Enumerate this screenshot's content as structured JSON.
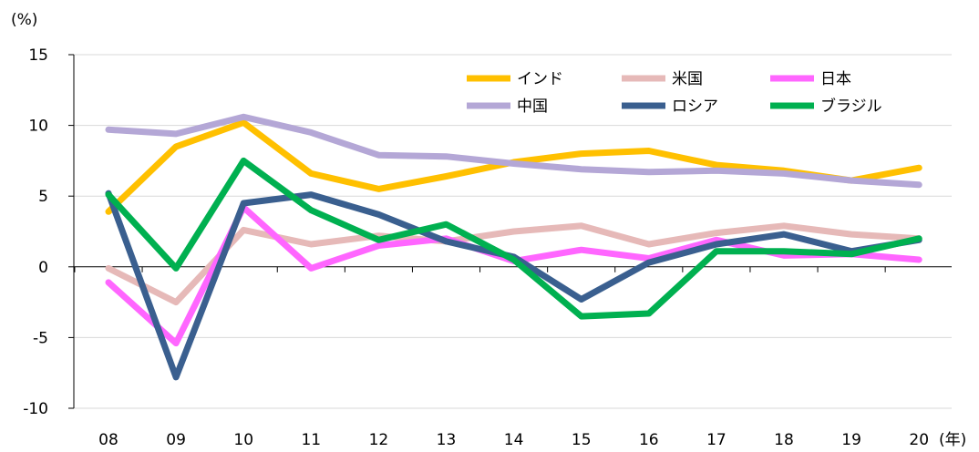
{
  "chart_data": {
    "type": "line",
    "y_unit_label": "(%)",
    "x_unit_label": "(年)",
    "categories": [
      "08",
      "09",
      "10",
      "11",
      "12",
      "13",
      "14",
      "15",
      "16",
      "17",
      "18",
      "19",
      "20"
    ],
    "yticks": [
      "15",
      "10",
      "5",
      "0",
      "-5",
      "-10"
    ],
    "ytick_values": [
      15,
      10,
      5,
      0,
      -5,
      -10
    ],
    "ylim": [
      -10,
      15
    ],
    "grid": true,
    "legend_position": "top-right",
    "series": [
      {
        "name": "インド",
        "color": "#FFC000",
        "values": [
          3.9,
          8.5,
          10.2,
          6.6,
          5.5,
          6.4,
          7.4,
          8.0,
          8.2,
          7.2,
          6.8,
          6.1,
          7.0
        ]
      },
      {
        "name": "米国",
        "color": "#E6B9B8",
        "values": [
          -0.1,
          -2.5,
          2.6,
          1.6,
          2.2,
          1.8,
          2.5,
          2.9,
          1.6,
          2.4,
          2.9,
          2.3,
          2.0
        ]
      },
      {
        "name": "日本",
        "color": "#FF66FF",
        "values": [
          -1.1,
          -5.4,
          4.2,
          -0.1,
          1.5,
          2.0,
          0.4,
          1.2,
          0.6,
          1.9,
          0.8,
          0.9,
          0.5
        ]
      },
      {
        "name": "中国",
        "color": "#B4A7D6",
        "values": [
          9.7,
          9.4,
          10.6,
          9.5,
          7.9,
          7.8,
          7.3,
          6.9,
          6.7,
          6.8,
          6.6,
          6.1,
          5.8
        ]
      },
      {
        "name": "ロシア",
        "color": "#3A5F8F",
        "values": [
          5.2,
          -7.8,
          4.5,
          5.1,
          3.7,
          1.8,
          0.7,
          -2.3,
          0.3,
          1.6,
          2.3,
          1.1,
          1.9
        ]
      },
      {
        "name": "ブラジル",
        "color": "#00B050",
        "values": [
          5.1,
          -0.1,
          7.5,
          4.0,
          1.9,
          3.0,
          0.5,
          -3.5,
          -3.3,
          1.1,
          1.1,
          0.9,
          2.0
        ]
      }
    ]
  }
}
